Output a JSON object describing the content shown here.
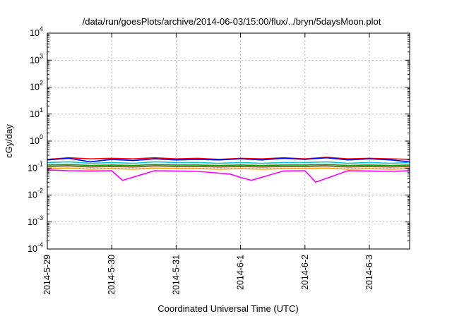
{
  "chart_data": {
    "type": "line",
    "title": "/data/run/goesPlots/archive/2014-06-03/15:00/flux/../bryn/5daysMoon.plot",
    "xlabel": "Coordinated Universal Time (UTC)",
    "ylabel": "cGy/day",
    "yscale": "log",
    "ylim": [
      0.0001,
      10000
    ],
    "xlim": [
      "2014-05-29T00:00",
      "2014-06-03T15:00"
    ],
    "grid": true,
    "x_ticks": [
      "2014-5-29",
      "2014-5-30",
      "2014-5-31",
      "2014-6-1",
      "2014-6-2",
      "2014-6-3"
    ],
    "y_ticks": [
      {
        "value": 0.0001,
        "base": "10",
        "exp": "-4"
      },
      {
        "value": 0.001,
        "base": "10",
        "exp": "-3"
      },
      {
        "value": 0.01,
        "base": "10",
        "exp": "-2"
      },
      {
        "value": 0.1,
        "base": "10",
        "exp": "-1"
      },
      {
        "value": 1,
        "base": "10",
        "exp": "0"
      },
      {
        "value": 10,
        "base": "10",
        "exp": "1"
      },
      {
        "value": 100,
        "base": "10",
        "exp": "2"
      },
      {
        "value": 1000,
        "base": "10",
        "exp": "3"
      },
      {
        "value": 10000,
        "base": "10",
        "exp": "4"
      }
    ],
    "series": [
      {
        "color": "#ff0000",
        "values": [
          [
            "2014-05-29T00:00",
            0.21
          ],
          [
            "2014-05-29T08:00",
            0.24
          ],
          [
            "2014-05-29T16:00",
            0.22
          ],
          [
            "2014-05-30T00:00",
            0.23
          ],
          [
            "2014-05-30T08:00",
            0.22
          ],
          [
            "2014-05-30T16:00",
            0.24
          ],
          [
            "2014-05-31T00:00",
            0.22
          ],
          [
            "2014-05-31T08:00",
            0.23
          ],
          [
            "2014-05-31T16:00",
            0.21
          ],
          [
            "2014-06-01T00:00",
            0.23
          ],
          [
            "2014-06-01T08:00",
            0.22
          ],
          [
            "2014-06-01T16:00",
            0.24
          ],
          [
            "2014-06-02T00:00",
            0.22
          ],
          [
            "2014-06-02T08:00",
            0.25
          ],
          [
            "2014-06-02T16:00",
            0.22
          ],
          [
            "2014-06-03T00:00",
            0.23
          ],
          [
            "2014-06-03T08:00",
            0.22
          ],
          [
            "2014-06-03T15:00",
            0.21
          ]
        ]
      },
      {
        "color": "#0000ff",
        "values": [
          [
            "2014-05-29T00:00",
            0.2
          ],
          [
            "2014-05-29T08:00",
            0.23
          ],
          [
            "2014-05-29T16:00",
            0.17
          ],
          [
            "2014-05-30T00:00",
            0.21
          ],
          [
            "2014-05-30T08:00",
            0.19
          ],
          [
            "2014-05-30T16:00",
            0.22
          ],
          [
            "2014-05-31T00:00",
            0.2
          ],
          [
            "2014-05-31T08:00",
            0.21
          ],
          [
            "2014-05-31T16:00",
            0.2
          ],
          [
            "2014-06-01T00:00",
            0.22
          ],
          [
            "2014-06-01T08:00",
            0.2
          ],
          [
            "2014-06-01T16:00",
            0.23
          ],
          [
            "2014-06-02T00:00",
            0.21
          ],
          [
            "2014-06-02T08:00",
            0.24
          ],
          [
            "2014-06-02T16:00",
            0.2
          ],
          [
            "2014-06-03T00:00",
            0.22
          ],
          [
            "2014-06-03T08:00",
            0.2
          ],
          [
            "2014-06-03T15:00",
            0.17
          ]
        ]
      },
      {
        "color": "#00c8d8",
        "values": [
          [
            "2014-05-29T00:00",
            0.16
          ],
          [
            "2014-05-29T08:00",
            0.17
          ],
          [
            "2014-05-29T16:00",
            0.15
          ],
          [
            "2014-05-30T00:00",
            0.16
          ],
          [
            "2014-05-30T08:00",
            0.15
          ],
          [
            "2014-05-30T16:00",
            0.17
          ],
          [
            "2014-05-31T00:00",
            0.16
          ],
          [
            "2014-05-31T08:00",
            0.16
          ],
          [
            "2014-05-31T16:00",
            0.15
          ],
          [
            "2014-06-01T00:00",
            0.16
          ],
          [
            "2014-06-01T08:00",
            0.15
          ],
          [
            "2014-06-01T16:00",
            0.16
          ],
          [
            "2014-06-02T00:00",
            0.16
          ],
          [
            "2014-06-02T08:00",
            0.17
          ],
          [
            "2014-06-02T16:00",
            0.15
          ],
          [
            "2014-06-03T00:00",
            0.16
          ],
          [
            "2014-06-03T08:00",
            0.15
          ],
          [
            "2014-06-03T15:00",
            0.16
          ]
        ]
      },
      {
        "color": "#00a000",
        "values": [
          [
            "2014-05-29T00:00",
            0.13
          ],
          [
            "2014-05-29T08:00",
            0.135
          ],
          [
            "2014-05-29T16:00",
            0.125
          ],
          [
            "2014-05-30T00:00",
            0.13
          ],
          [
            "2014-05-30T08:00",
            0.125
          ],
          [
            "2014-05-30T16:00",
            0.135
          ],
          [
            "2014-05-31T00:00",
            0.13
          ],
          [
            "2014-05-31T08:00",
            0.13
          ],
          [
            "2014-05-31T16:00",
            0.125
          ],
          [
            "2014-06-01T00:00",
            0.13
          ],
          [
            "2014-06-01T08:00",
            0.125
          ],
          [
            "2014-06-01T16:00",
            0.13
          ],
          [
            "2014-06-02T00:00",
            0.13
          ],
          [
            "2014-06-02T08:00",
            0.135
          ],
          [
            "2014-06-02T16:00",
            0.125
          ],
          [
            "2014-06-03T00:00",
            0.13
          ],
          [
            "2014-06-03T08:00",
            0.125
          ],
          [
            "2014-06-03T15:00",
            0.13
          ]
        ]
      },
      {
        "color": "#8b3a1a",
        "values": [
          [
            "2014-05-29T00:00",
            0.115
          ],
          [
            "2014-05-29T08:00",
            0.12
          ],
          [
            "2014-05-29T16:00",
            0.11
          ],
          [
            "2014-05-30T00:00",
            0.115
          ],
          [
            "2014-05-30T08:00",
            0.11
          ],
          [
            "2014-05-30T16:00",
            0.12
          ],
          [
            "2014-05-31T00:00",
            0.115
          ],
          [
            "2014-05-31T08:00",
            0.115
          ],
          [
            "2014-05-31T16:00",
            0.11
          ],
          [
            "2014-06-01T00:00",
            0.115
          ],
          [
            "2014-06-01T08:00",
            0.11
          ],
          [
            "2014-06-01T16:00",
            0.115
          ],
          [
            "2014-06-02T00:00",
            0.115
          ],
          [
            "2014-06-02T08:00",
            0.12
          ],
          [
            "2014-06-02T16:00",
            0.11
          ],
          [
            "2014-06-03T00:00",
            0.115
          ],
          [
            "2014-06-03T08:00",
            0.11
          ],
          [
            "2014-06-03T15:00",
            0.115
          ]
        ]
      },
      {
        "color": "#ffa500",
        "values": [
          [
            "2014-05-29T00:00",
            0.095
          ],
          [
            "2014-05-29T08:00",
            0.1
          ],
          [
            "2014-05-29T16:00",
            0.09
          ],
          [
            "2014-05-30T00:00",
            0.095
          ],
          [
            "2014-05-30T08:00",
            0.09
          ],
          [
            "2014-05-30T16:00",
            0.1
          ],
          [
            "2014-05-31T00:00",
            0.095
          ],
          [
            "2014-05-31T08:00",
            0.095
          ],
          [
            "2014-05-31T16:00",
            0.09
          ],
          [
            "2014-06-01T00:00",
            0.095
          ],
          [
            "2014-06-01T08:00",
            0.09
          ],
          [
            "2014-06-01T16:00",
            0.095
          ],
          [
            "2014-06-02T00:00",
            0.095
          ],
          [
            "2014-06-02T08:00",
            0.1
          ],
          [
            "2014-06-02T16:00",
            0.09
          ],
          [
            "2014-06-03T00:00",
            0.095
          ],
          [
            "2014-06-03T08:00",
            0.09
          ],
          [
            "2014-06-03T15:00",
            0.095
          ]
        ]
      },
      {
        "color": "#ff00ff",
        "values": [
          [
            "2014-05-29T00:00",
            0.085
          ],
          [
            "2014-05-29T08:00",
            0.08
          ],
          [
            "2014-05-29T16:00",
            0.078
          ],
          [
            "2014-05-30T00:00",
            0.08
          ],
          [
            "2014-05-30T04:00",
            0.035
          ],
          [
            "2014-05-30T16:00",
            0.08
          ],
          [
            "2014-05-31T00:00",
            0.078
          ],
          [
            "2014-05-31T08:00",
            0.075
          ],
          [
            "2014-05-31T20:00",
            0.06
          ],
          [
            "2014-06-01T00:00",
            0.045
          ],
          [
            "2014-06-01T04:00",
            0.035
          ],
          [
            "2014-06-01T16:00",
            0.078
          ],
          [
            "2014-06-02T00:00",
            0.08
          ],
          [
            "2014-06-02T04:00",
            0.03
          ],
          [
            "2014-06-02T16:00",
            0.08
          ],
          [
            "2014-06-03T00:00",
            0.078
          ],
          [
            "2014-06-03T08:00",
            0.075
          ],
          [
            "2014-06-03T15:00",
            0.08
          ]
        ]
      }
    ]
  }
}
